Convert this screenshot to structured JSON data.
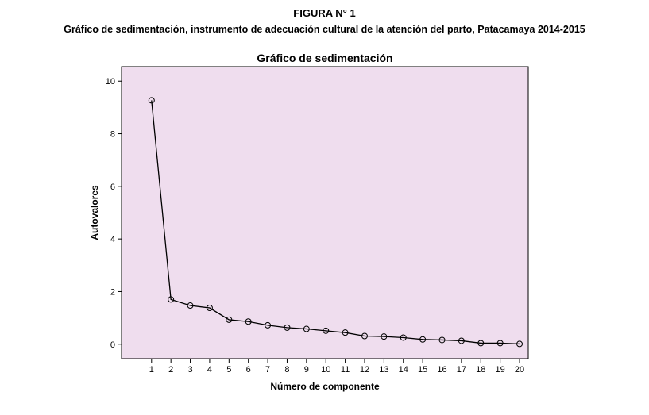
{
  "figure": {
    "label": "FIGURA N° 1",
    "caption": "Gráfico de sedimentación, instrumento de adecuación cultural de la atención del parto, Patacamaya 2014-2015"
  },
  "chart_data": {
    "type": "line",
    "title": "Gráfico de sedimentación",
    "xlabel": "Número de componente",
    "ylabel": "Autovalores",
    "x": [
      1,
      2,
      3,
      4,
      5,
      6,
      7,
      8,
      9,
      10,
      11,
      12,
      13,
      14,
      15,
      16,
      17,
      18,
      19,
      20
    ],
    "values": [
      9.27,
      1.7,
      1.47,
      1.38,
      0.93,
      0.86,
      0.72,
      0.63,
      0.58,
      0.51,
      0.44,
      0.31,
      0.29,
      0.25,
      0.18,
      0.16,
      0.13,
      0.04,
      0.04,
      0.01
    ],
    "xticks": [
      "1",
      "2",
      "3",
      "4",
      "5",
      "6",
      "7",
      "8",
      "9",
      "10",
      "11",
      "12",
      "13",
      "14",
      "15",
      "16",
      "17",
      "18",
      "19",
      "20"
    ],
    "yticks": [
      0,
      2,
      4,
      6,
      8,
      10
    ],
    "xlim": [
      -0.55,
      20.45
    ],
    "ylim": [
      -0.55,
      10.55
    ],
    "grid": false,
    "markers": "open-circle",
    "colors": {
      "plot_background": "#efddee",
      "line": "#000000"
    }
  }
}
